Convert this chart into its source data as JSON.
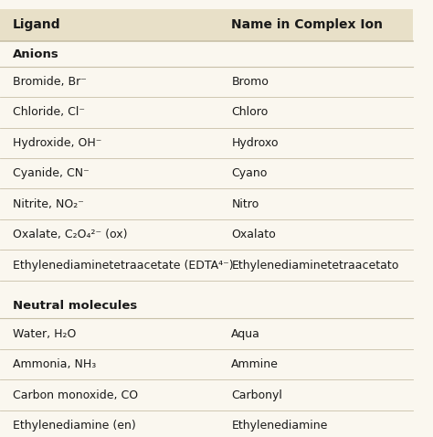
{
  "title_col1": "Ligand",
  "title_col2": "Name in Complex Ion",
  "header_bg": "#e8e0c8",
  "row_bg": "#faf7ef",
  "divider_color": "#c8c0a8",
  "section1_header": "Anions",
  "section2_header": "Neutral molecules",
  "rows": [
    {
      "ligand": "Bromide, Br⁻",
      "name": "Bromo",
      "section": "anions"
    },
    {
      "ligand": "Chloride, Cl⁻",
      "name": "Chloro",
      "section": "anions"
    },
    {
      "ligand": "Hydroxide, OH⁻",
      "name": "Hydroxo",
      "section": "anions"
    },
    {
      "ligand": "Cyanide, CN⁻",
      "name": "Cyano",
      "section": "anions"
    },
    {
      "ligand": "Nitrite, NO₂⁻",
      "name": "Nitro",
      "section": "anions"
    },
    {
      "ligand": "Oxalate, C₂O₄²⁻ (ox)",
      "name": "Oxalato",
      "section": "anions"
    },
    {
      "ligand": "Ethylenediaminetetraacetate (EDTA⁴⁻)",
      "name": "Ethylenediaminetetraacetato",
      "section": "anions"
    },
    {
      "ligand": "Water, H₂O",
      "name": "Aqua",
      "section": "neutral"
    },
    {
      "ligand": "Ammonia, NH₃",
      "name": "Ammine",
      "section": "neutral"
    },
    {
      "ligand": "Carbon monoxide, CO",
      "name": "Carbonyl",
      "section": "neutral"
    },
    {
      "ligand": "Ethylenediamine (en)",
      "name": "Ethylenediamine",
      "section": "neutral"
    }
  ],
  "font_size_header": 10,
  "font_size_body": 9,
  "font_size_section": 9.5,
  "text_color": "#1a1a1a"
}
